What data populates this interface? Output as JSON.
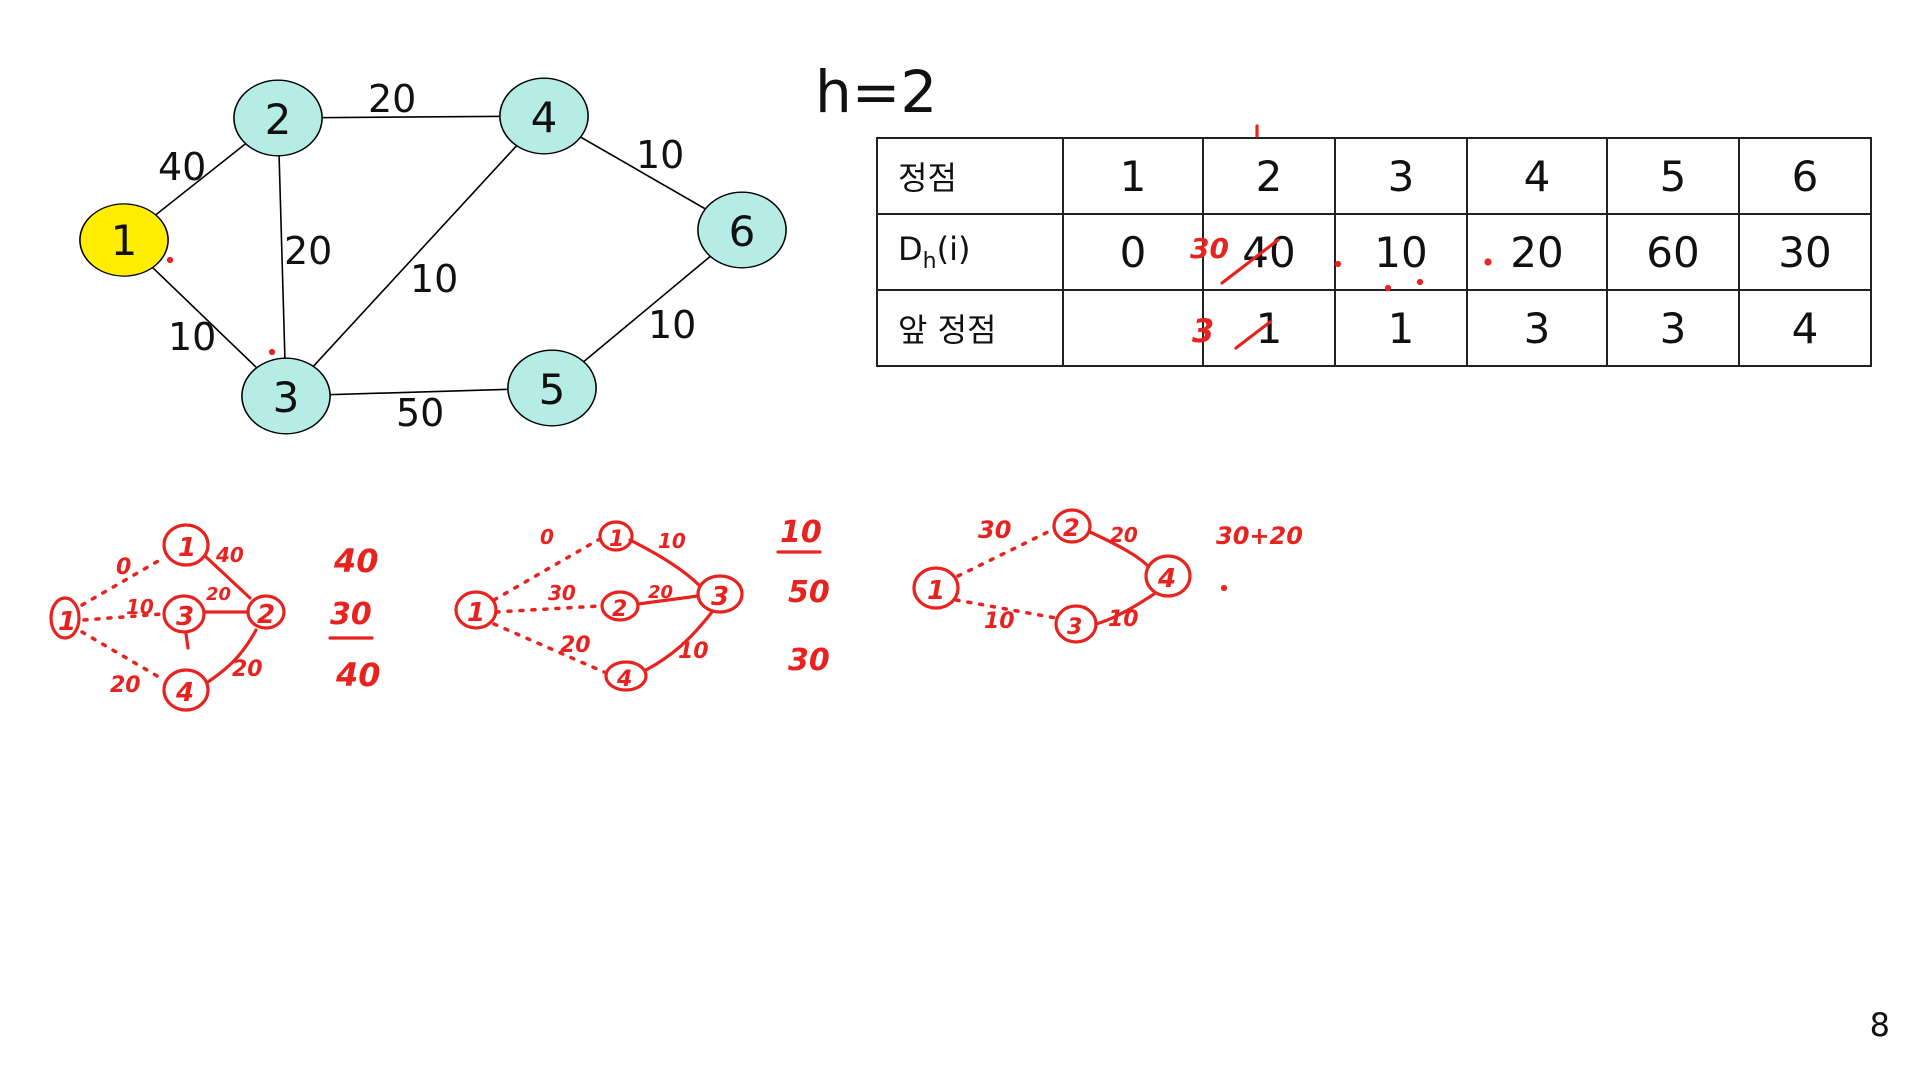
{
  "slide": {
    "h_label": "h=2",
    "page_number": "8"
  },
  "graph": {
    "nodes": [
      {
        "label": "1",
        "fill": "#ffee00"
      },
      {
        "label": "2",
        "fill": "#b5ece6"
      },
      {
        "label": "3",
        "fill": "#b5ece6"
      },
      {
        "label": "4",
        "fill": "#b5ece6"
      },
      {
        "label": "5",
        "fill": "#b5ece6"
      },
      {
        "label": "6",
        "fill": "#b5ece6"
      }
    ],
    "edge_weights": {
      "e12": "40",
      "e13": "10",
      "e23": "20",
      "e24": "20",
      "e34": "10",
      "e35": "50",
      "e46": "10",
      "e56": "10"
    }
  },
  "table": {
    "header_label": "정점",
    "vertices": [
      "1",
      "2",
      "3",
      "4",
      "5",
      "6"
    ],
    "dist_label_main": "D",
    "dist_label_sub": "h",
    "dist_label_tail": "(i)",
    "dist_values": [
      "0",
      "40",
      "10",
      "20",
      "60",
      "30"
    ],
    "prev_label": "앞 정점",
    "prev_values": [
      "",
      "1",
      "1",
      "3",
      "3",
      "4"
    ]
  },
  "annotations": {
    "table_corrections": {
      "dist_v2_new": "30",
      "prev_v2_new": "3"
    },
    "sketch1": {
      "nodes": [
        "1",
        "1",
        "3",
        "2",
        "4"
      ],
      "weights": [
        "0",
        "10",
        "20",
        "40",
        "20",
        "20"
      ],
      "results": [
        "40",
        "30",
        "40"
      ]
    },
    "sketch2": {
      "nodes": [
        "1",
        "1",
        "2",
        "3",
        "4"
      ],
      "weights": [
        "0",
        "10",
        "30",
        "20",
        "20",
        "10"
      ],
      "results": [
        "10",
        "50",
        "30"
      ]
    },
    "sketch3": {
      "nodes": [
        "1",
        "2",
        "3",
        "4"
      ],
      "weights": [
        "30",
        "20",
        "10",
        "10"
      ],
      "results": [
        "30+20"
      ]
    },
    "ink_color": "#e8231f"
  }
}
